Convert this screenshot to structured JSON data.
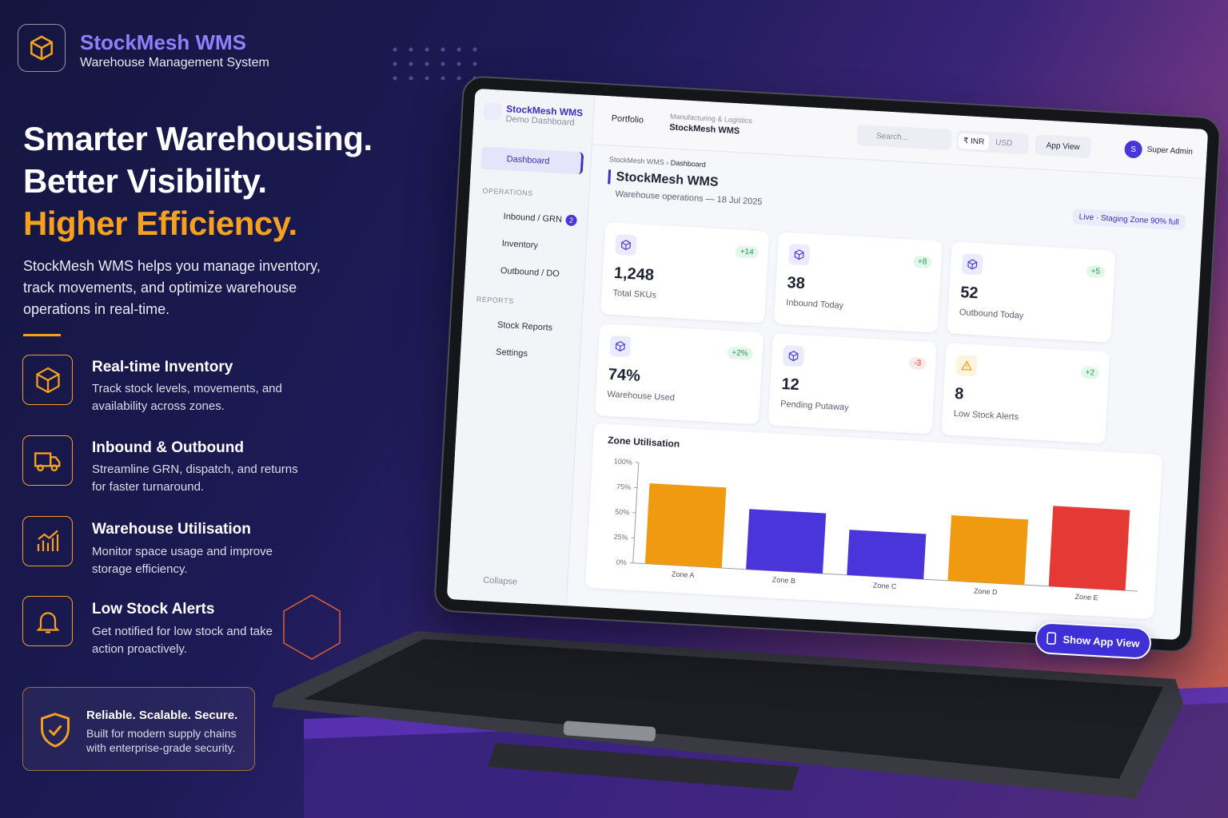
{
  "brand": {
    "name": "StockMesh WMS",
    "tagline": "Warehouse Management System"
  },
  "hero": {
    "lines": [
      "Smarter Warehousing.",
      "Better Visibility.",
      "Higher Efficiency."
    ],
    "description": "StockMesh WMS helps you manage inventory, track movements, and optimize warehouse operations in real-time."
  },
  "features": [
    {
      "title": "Real-time Inventory",
      "text": "Track stock levels, movements, and availability across zones."
    },
    {
      "title": "Inbound & Outbound",
      "text": "Streamline GRN, dispatch, and returns for faster turnaround."
    },
    {
      "title": "Warehouse Utilisation",
      "text": "Monitor space usage and improve storage efficiency."
    },
    {
      "title": "Low Stock Alerts",
      "text": "Get notified for low stock and take action proactively."
    }
  ],
  "badge": {
    "title": "Reliable. Scalable. Secure.",
    "text": "Built for modern supply chains with enterprise-grade security."
  },
  "app": {
    "sidebar": {
      "brand": "StockMesh WMS",
      "subtitle": "Demo Dashboard",
      "active": "Dashboard",
      "sections": [
        {
          "title": "OPERATIONS",
          "items": [
            {
              "label": "Inbound / GRN",
              "badge": 2
            },
            {
              "label": "Inventory"
            },
            {
              "label": "Outbound / DO"
            }
          ]
        },
        {
          "title": "REPORTS",
          "items": [
            {
              "label": "Stock Reports"
            },
            {
              "label": "Settings"
            }
          ]
        }
      ],
      "collapse": "Collapse"
    },
    "topbar": {
      "back": "Portfolio",
      "context": "Manufacturing & Logistics",
      "project": "StockMesh WMS",
      "search": "Search...",
      "currencies": [
        "₹ INR",
        "USD"
      ],
      "app_view": "App View",
      "user_initial": "S",
      "user_name": "Super Admin"
    },
    "breadcrumb": [
      "StockMesh WMS",
      "Dashboard"
    ],
    "page_title": "StockMesh WMS",
    "page_subtitle": "Warehouse operations — 18 Jul 2025",
    "status": "Live · Staging Zone 90% full",
    "kpis": [
      {
        "value": "1,248",
        "label": "Total SKUs",
        "delta": "+14"
      },
      {
        "value": "38",
        "label": "Inbound Today",
        "delta": "+8"
      },
      {
        "value": "52",
        "label": "Outbound Today",
        "delta": "+5"
      },
      {
        "value": "74%",
        "label": "Warehouse Used",
        "delta": "+2%"
      },
      {
        "value": "12",
        "label": "Pending Putaway",
        "delta": "-3"
      },
      {
        "value": "8",
        "label": "Low Stock Alerts",
        "delta": "+2"
      }
    ],
    "show_app_view": "Show App View"
  },
  "chart_data": {
    "type": "bar",
    "title": "Zone Utilisation",
    "categories": [
      "Zone A",
      "Zone B",
      "Zone C",
      "Zone D",
      "Zone E"
    ],
    "values": [
      80,
      60,
      45,
      65,
      80
    ],
    "colors": [
      "#f09a12",
      "#4a35db",
      "#4a35db",
      "#f09a12",
      "#e53935"
    ],
    "ylim": [
      0,
      100
    ],
    "yticks": [
      {
        "value": 0,
        "label": "0%"
      },
      {
        "value": 25,
        "label": "25%"
      },
      {
        "value": 50,
        "label": "50%"
      },
      {
        "value": 75,
        "label": "75%"
      },
      {
        "value": 100,
        "label": "100%"
      }
    ]
  }
}
